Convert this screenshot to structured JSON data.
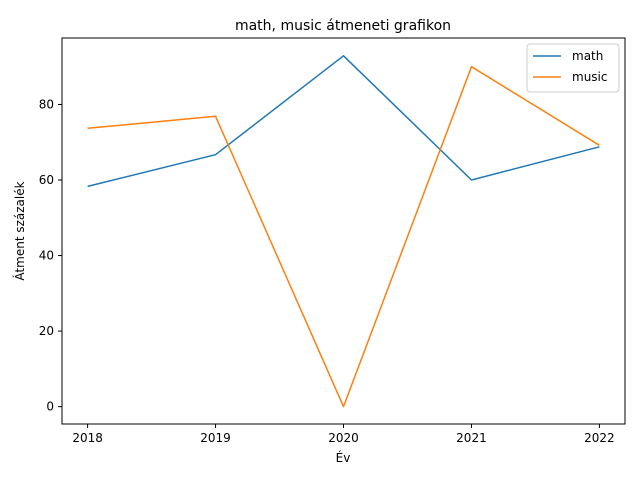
{
  "chart_data": {
    "type": "line",
    "title": "math, music átmeneti grafikon",
    "xlabel": "Év",
    "ylabel": "Átment százalék",
    "x": [
      2018,
      2019,
      2020,
      2021,
      2022
    ],
    "x_tick_labels": [
      "2018",
      "2019",
      "2020",
      "2021",
      "2022"
    ],
    "y_ticks": [
      0,
      20,
      40,
      60,
      80
    ],
    "y_tick_labels": [
      "0",
      "20",
      "40",
      "60",
      "80"
    ],
    "xlim": [
      2017.8,
      2022.2
    ],
    "ylim": [
      -4.6,
      97.6
    ],
    "grid": false,
    "legend_position": "top-right",
    "series": [
      {
        "name": "math",
        "color": "#1f77b4",
        "values": [
          58.3,
          66.7,
          92.9,
          60.0,
          68.8
        ]
      },
      {
        "name": "music",
        "color": "#ff7f0e",
        "values": [
          73.7,
          76.9,
          0.0,
          90.0,
          69.2
        ]
      }
    ]
  }
}
